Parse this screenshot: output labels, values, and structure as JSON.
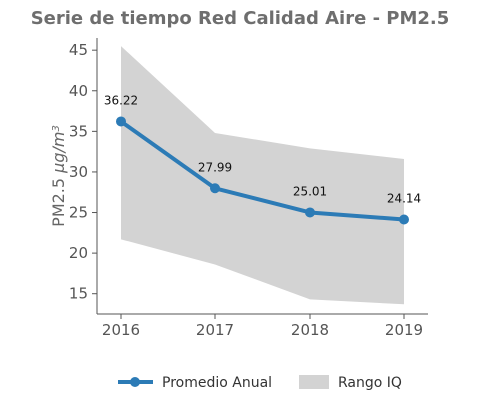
{
  "chart_data": {
    "type": "line",
    "title": "Serie de tiempo Red Calidad Aire - PM2.5",
    "ylabel": "PM2.5 μg/m",
    "ylabel_superscript": "3",
    "xlabel": "",
    "x": [
      "2016",
      "2017",
      "2018",
      "2019"
    ],
    "yticks": [
      15,
      20,
      25,
      30,
      35,
      40,
      45
    ],
    "ylim": [
      12.5,
      46.5
    ],
    "series": [
      {
        "name": "Promedio Anual",
        "values": [
          36.22,
          27.99,
          25.01,
          24.14
        ],
        "color": "#2c7bb6"
      }
    ],
    "band": {
      "name": "Rango IQ",
      "lower": [
        21.7,
        18.6,
        14.3,
        13.7
      ],
      "upper": [
        45.5,
        34.8,
        32.9,
        31.6
      ],
      "color": "#d3d3d3"
    },
    "data_labels": [
      "36.22",
      "27.99",
      "25.01",
      "24.14"
    ],
    "legend_position": "bottom",
    "grid": false
  }
}
